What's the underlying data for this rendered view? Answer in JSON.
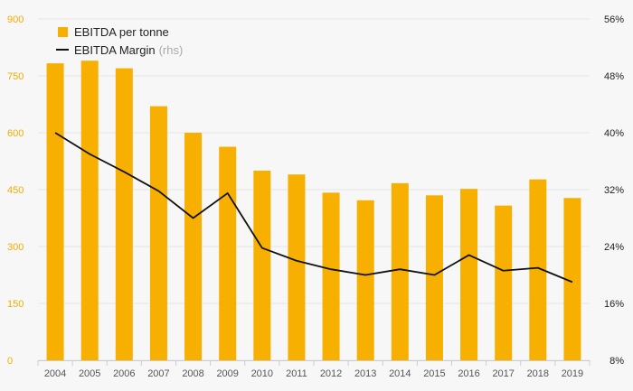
{
  "colors": {
    "bar": "#f7b000",
    "line": "#111111",
    "left_axis_text": "#f2ac00",
    "grid": "#e6e6e6",
    "background": "#f7f7f7"
  },
  "legend": {
    "bar_label": "EBITDA per tonne",
    "line_label": "EBITDA Margin",
    "line_suffix": "(rhs)",
    "placement": "top-left"
  },
  "chart_data": {
    "type": "bar+line",
    "categories": [
      "2004",
      "2005",
      "2006",
      "2007",
      "2008",
      "2009",
      "2010",
      "2011",
      "2012",
      "2013",
      "2014",
      "2015",
      "2016",
      "2017",
      "2018",
      "2019"
    ],
    "series": [
      {
        "name": "EBITDA per tonne",
        "type": "bar",
        "axis": "left",
        "values": [
          783,
          790,
          770,
          670,
          600,
          563,
          500,
          490,
          442,
          422,
          467,
          435,
          452,
          408,
          477,
          428
        ]
      },
      {
        "name": "EBITDA Margin",
        "type": "line",
        "axis": "right",
        "unit": "%",
        "values": [
          40,
          37,
          34.5,
          31.8,
          28,
          31.5,
          23.8,
          22,
          20.8,
          20,
          20.8,
          20,
          22.8,
          20.6,
          21,
          19
        ]
      }
    ],
    "left_axis": {
      "min": 0,
      "max": 900,
      "ticks": [
        "0",
        "150",
        "300",
        "450",
        "600",
        "750",
        "900"
      ]
    },
    "right_axis": {
      "min": 8,
      "max": 56,
      "ticks": [
        "8%",
        "16%",
        "24%",
        "32%",
        "40%",
        "48%",
        "56%"
      ]
    },
    "grid": true
  }
}
